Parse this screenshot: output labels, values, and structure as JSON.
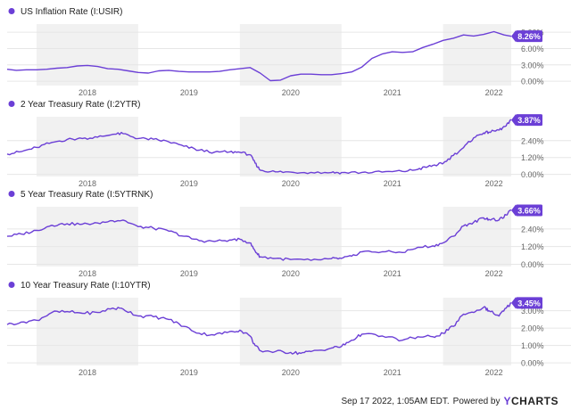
{
  "colors": {
    "line": "#6b3fd6",
    "grid": "#e6e6e6",
    "shade": "#f1f1f1",
    "text": "#222222",
    "axis_text": "#666666",
    "brand": "#6b3fd6"
  },
  "footer": {
    "timestamp": "Sep 17 2022, 1:05AM EDT.",
    "powered_by": "Powered by",
    "brand_y": "Y",
    "brand_rest": "CHARTS"
  },
  "chart_data": [
    {
      "type": "line",
      "title": "US Inflation Rate (I:USIR)",
      "xlabel": "",
      "ylabel": "",
      "x_ticks": [
        "2018",
        "2019",
        "2020",
        "2021",
        "2022"
      ],
      "y_ticks": [
        "0.00%",
        "3.00%",
        "6.00%",
        "9.00%"
      ],
      "y_tick_values": [
        0,
        3,
        6,
        9
      ],
      "ylim": [
        -0.8,
        10.5
      ],
      "show_x_labels": true,
      "last_value_label": "8.26%",
      "x": [
        2017.71,
        2017.8,
        2017.9,
        2018.0,
        2018.1,
        2018.2,
        2018.3,
        2018.4,
        2018.5,
        2018.6,
        2018.7,
        2018.8,
        2018.9,
        2019.0,
        2019.1,
        2019.2,
        2019.3,
        2019.4,
        2019.5,
        2019.6,
        2019.7,
        2019.8,
        2019.9,
        2020.0,
        2020.1,
        2020.2,
        2020.3,
        2020.4,
        2020.5,
        2020.6,
        2020.7,
        2020.8,
        2020.9,
        2021.0,
        2021.1,
        2021.2,
        2021.3,
        2021.4,
        2021.5,
        2021.6,
        2021.7,
        2021.8,
        2021.9,
        2022.0,
        2022.1,
        2022.2,
        2022.3,
        2022.4,
        2022.5,
        2022.6,
        2022.67
      ],
      "values": [
        2.2,
        2.0,
        2.1,
        2.1,
        2.2,
        2.4,
        2.5,
        2.8,
        2.9,
        2.7,
        2.3,
        2.2,
        1.9,
        1.6,
        1.5,
        1.9,
        2.0,
        1.8,
        1.7,
        1.7,
        1.7,
        1.8,
        2.1,
        2.3,
        2.5,
        1.5,
        0.1,
        0.2,
        1.0,
        1.3,
        1.3,
        1.2,
        1.2,
        1.4,
        1.7,
        2.6,
        4.2,
        5.0,
        5.4,
        5.3,
        5.4,
        6.2,
        6.8,
        7.5,
        7.9,
        8.5,
        8.3,
        8.6,
        9.1,
        8.5,
        8.26
      ]
    },
    {
      "type": "line",
      "title": "2 Year Treasury Rate (I:2YTR)",
      "xlabel": "",
      "ylabel": "",
      "x_ticks": [
        "2018",
        "2019",
        "2020",
        "2021",
        "2022"
      ],
      "y_ticks": [
        "0.00%",
        "1.20%",
        "2.40%"
      ],
      "y_tick_values": [
        0,
        1.2,
        2.4
      ],
      "ylim": [
        -0.15,
        4.1
      ],
      "show_x_labels": true,
      "last_value_label": "3.87%",
      "x": [
        2017.71,
        2017.85,
        2018.0,
        2018.15,
        2018.3,
        2018.45,
        2018.6,
        2018.75,
        2018.85,
        2019.0,
        2019.15,
        2019.3,
        2019.45,
        2019.6,
        2019.75,
        2019.9,
        2020.0,
        2020.1,
        2020.15,
        2020.2,
        2020.35,
        2020.5,
        2020.7,
        2020.9,
        2021.0,
        2021.2,
        2021.4,
        2021.6,
        2021.75,
        2021.85,
        2021.95,
        2022.0,
        2022.1,
        2022.2,
        2022.3,
        2022.4,
        2022.45,
        2022.55,
        2022.62,
        2022.67
      ],
      "values": [
        1.45,
        1.62,
        1.92,
        2.27,
        2.48,
        2.55,
        2.65,
        2.85,
        2.9,
        2.55,
        2.5,
        2.32,
        2.0,
        1.72,
        1.58,
        1.6,
        1.57,
        1.4,
        0.8,
        0.3,
        0.18,
        0.16,
        0.14,
        0.13,
        0.13,
        0.14,
        0.16,
        0.21,
        0.35,
        0.55,
        0.7,
        0.78,
        1.35,
        1.9,
        2.6,
        2.95,
        3.0,
        3.15,
        3.45,
        3.87
      ]
    },
    {
      "type": "line",
      "title": "5 Year Treasury Rate (I:5YTRNK)",
      "xlabel": "",
      "ylabel": "",
      "x_ticks": [
        "2018",
        "2019",
        "2020",
        "2021",
        "2022"
      ],
      "y_ticks": [
        "0.00%",
        "1.20%",
        "2.40%"
      ],
      "y_tick_values": [
        0,
        1.2,
        2.4
      ],
      "ylim": [
        -0.15,
        3.9
      ],
      "show_x_labels": true,
      "last_value_label": "3.66%",
      "x": [
        2017.71,
        2017.85,
        2018.0,
        2018.15,
        2018.3,
        2018.45,
        2018.6,
        2018.75,
        2018.85,
        2019.0,
        2019.15,
        2019.3,
        2019.45,
        2019.6,
        2019.75,
        2019.9,
        2020.0,
        2020.1,
        2020.15,
        2020.2,
        2020.35,
        2020.5,
        2020.7,
        2020.9,
        2021.0,
        2021.1,
        2021.2,
        2021.4,
        2021.6,
        2021.75,
        2021.9,
        2022.0,
        2022.1,
        2022.2,
        2022.3,
        2022.4,
        2022.45,
        2022.55,
        2022.62,
        2022.67
      ],
      "values": [
        1.9,
        2.05,
        2.3,
        2.65,
        2.75,
        2.72,
        2.8,
        2.95,
        3.0,
        2.55,
        2.45,
        2.25,
        1.9,
        1.6,
        1.55,
        1.65,
        1.7,
        1.45,
        0.9,
        0.5,
        0.4,
        0.32,
        0.27,
        0.38,
        0.4,
        0.55,
        0.85,
        0.85,
        0.8,
        1.15,
        1.25,
        1.45,
        1.9,
        2.6,
        2.85,
        3.15,
        3.05,
        3.0,
        3.35,
        3.66
      ]
    },
    {
      "type": "line",
      "title": "10 Year Treasury Rate (I:10YTR)",
      "xlabel": "",
      "ylabel": "",
      "x_ticks": [
        "2018",
        "2019",
        "2020",
        "2021",
        "2022"
      ],
      "y_ticks": [
        "0.00%",
        "1.00%",
        "2.00%",
        "3.00%"
      ],
      "y_tick_values": [
        0,
        1,
        2,
        3
      ],
      "ylim": [
        -0.15,
        3.75
      ],
      "show_x_labels": true,
      "last_value_label": "3.45%",
      "x": [
        2017.71,
        2017.85,
        2018.0,
        2018.15,
        2018.3,
        2018.45,
        2018.6,
        2018.75,
        2018.85,
        2019.0,
        2019.15,
        2019.3,
        2019.45,
        2019.6,
        2019.75,
        2019.9,
        2020.0,
        2020.1,
        2020.15,
        2020.2,
        2020.35,
        2020.5,
        2020.6,
        2020.7,
        2020.9,
        2021.0,
        2021.1,
        2021.2,
        2021.4,
        2021.6,
        2021.75,
        2021.9,
        2022.0,
        2022.1,
        2022.2,
        2022.3,
        2022.4,
        2022.45,
        2022.55,
        2022.62,
        2022.67
      ],
      "values": [
        2.2,
        2.35,
        2.45,
        2.9,
        2.95,
        2.85,
        2.9,
        3.15,
        3.1,
        2.7,
        2.65,
        2.5,
        2.1,
        1.7,
        1.6,
        1.8,
        1.88,
        1.55,
        1.0,
        0.7,
        0.65,
        0.6,
        0.55,
        0.65,
        0.85,
        0.95,
        1.3,
        1.65,
        1.55,
        1.3,
        1.5,
        1.5,
        1.7,
        2.1,
        2.8,
        2.9,
        3.2,
        3.0,
        2.7,
        3.15,
        3.45
      ]
    }
  ]
}
